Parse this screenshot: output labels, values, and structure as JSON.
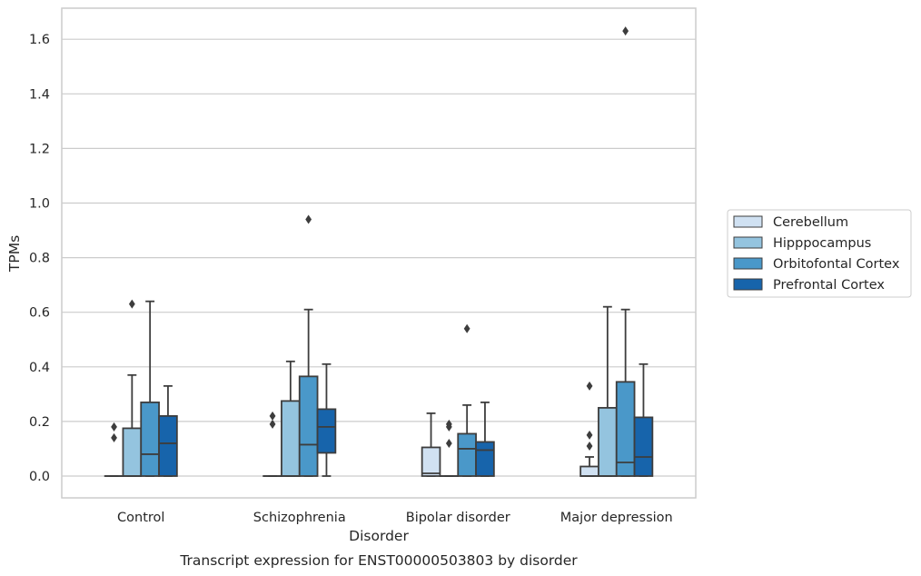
{
  "chart_data": {
    "type": "box",
    "title": "Transcript expression for ENST00000503803 by disorder",
    "xlabel": "Disorder",
    "ylabel": "TPMs",
    "ylim": [
      -0.08,
      1.72
    ],
    "yticks": [
      "0.0",
      "0.2",
      "0.4",
      "0.6",
      "0.8",
      "1.0",
      "1.2",
      "1.4",
      "1.6"
    ],
    "grid": true,
    "legend_position": "right",
    "categories": [
      "Control",
      "Schizophrenia",
      "Bipolar disorder",
      "Major depression"
    ],
    "series": [
      {
        "name": "Cerebellum",
        "color": "#d0e1f2",
        "boxes": [
          {
            "q1": 0.0,
            "median": 0.0,
            "q3": 0.0,
            "whisker_low": 0.0,
            "whisker_high": 0.0,
            "outliers": [
              0.14,
              0.18
            ]
          },
          {
            "q1": 0.0,
            "median": 0.0,
            "q3": 0.0,
            "whisker_low": 0.0,
            "whisker_high": 0.0,
            "outliers": [
              0.19,
              0.22
            ]
          },
          {
            "q1": 0.0,
            "median": 0.01,
            "q3": 0.105,
            "whisker_low": 0.0,
            "whisker_high": 0.23,
            "outliers": []
          },
          {
            "q1": 0.0,
            "median": 0.0,
            "q3": 0.035,
            "whisker_low": 0.0,
            "whisker_high": 0.07,
            "outliers": [
              0.11,
              0.15,
              0.33
            ]
          }
        ]
      },
      {
        "name": "Hipppocampus",
        "color": "#94c4df",
        "boxes": [
          {
            "q1": 0.0,
            "median": 0.0,
            "q3": 0.175,
            "whisker_low": 0.0,
            "whisker_high": 0.37,
            "outliers": [
              0.63
            ]
          },
          {
            "q1": 0.0,
            "median": 0.0,
            "q3": 0.275,
            "whisker_low": 0.0,
            "whisker_high": 0.42,
            "outliers": []
          },
          {
            "q1": 0.0,
            "median": 0.0,
            "q3": 0.0,
            "whisker_low": 0.0,
            "whisker_high": 0.0,
            "outliers": [
              0.12,
              0.18,
              0.19
            ]
          },
          {
            "q1": 0.0,
            "median": 0.0,
            "q3": 0.25,
            "whisker_low": 0.0,
            "whisker_high": 0.62,
            "outliers": []
          }
        ]
      },
      {
        "name": "Orbitofontal Cortex",
        "color": "#4a98c9",
        "boxes": [
          {
            "q1": 0.0,
            "median": 0.08,
            "q3": 0.27,
            "whisker_low": 0.0,
            "whisker_high": 0.64,
            "outliers": []
          },
          {
            "q1": 0.0,
            "median": 0.115,
            "q3": 0.365,
            "whisker_low": 0.0,
            "whisker_high": 0.61,
            "outliers": [
              0.94
            ]
          },
          {
            "q1": 0.0,
            "median": 0.1,
            "q3": 0.155,
            "whisker_low": 0.0,
            "whisker_high": 0.26,
            "outliers": [
              0.54
            ]
          },
          {
            "q1": 0.0,
            "median": 0.05,
            "q3": 0.345,
            "whisker_low": 0.0,
            "whisker_high": 0.61,
            "outliers": [
              1.63
            ]
          }
        ]
      },
      {
        "name": "Prefrontal Cortex",
        "color": "#1764ab",
        "boxes": [
          {
            "q1": 0.0,
            "median": 0.12,
            "q3": 0.22,
            "whisker_low": 0.0,
            "whisker_high": 0.33,
            "outliers": []
          },
          {
            "q1": 0.085,
            "median": 0.18,
            "q3": 0.245,
            "whisker_low": 0.0,
            "whisker_high": 0.41,
            "outliers": []
          },
          {
            "q1": 0.0,
            "median": 0.095,
            "q3": 0.125,
            "whisker_low": 0.0,
            "whisker_high": 0.27,
            "outliers": []
          },
          {
            "q1": 0.0,
            "median": 0.07,
            "q3": 0.215,
            "whisker_low": 0.0,
            "whisker_high": 0.41,
            "outliers": []
          }
        ]
      }
    ]
  }
}
